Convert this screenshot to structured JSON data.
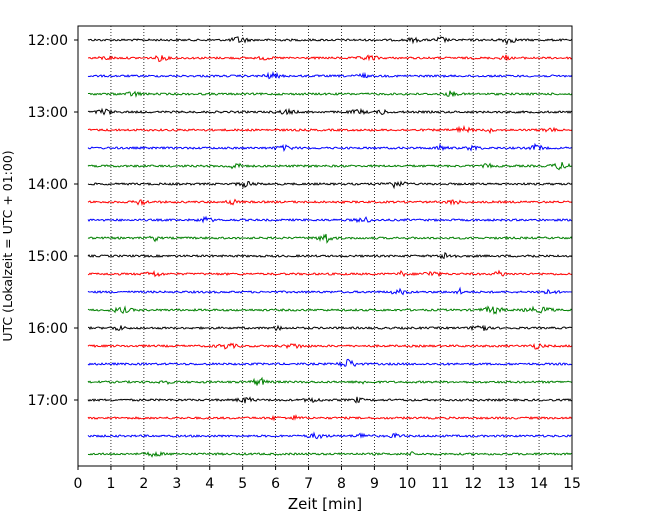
{
  "chart_data": {
    "type": "line",
    "title": "",
    "xlabel": "Zeit  [min]",
    "ylabel": "UTC (Lokalzeit = UTC + 01:00)",
    "xlim": [
      0,
      15
    ],
    "x_ticks": [
      "0",
      "1",
      "2",
      "3",
      "4",
      "5",
      "6",
      "7",
      "8",
      "9",
      "10",
      "11",
      "12",
      "13",
      "14",
      "15"
    ],
    "y_ticks": [
      "12:00",
      "13:00",
      "14:00",
      "15:00",
      "16:00",
      "17:00"
    ],
    "trace_start": "12:00",
    "trace_interval_min": 15,
    "trace_count": 24,
    "trace_colors": [
      "#000000",
      "#ff0000",
      "#0000ff",
      "#008000"
    ],
    "grid": "vertical dotted at each minute",
    "legend": "none"
  }
}
